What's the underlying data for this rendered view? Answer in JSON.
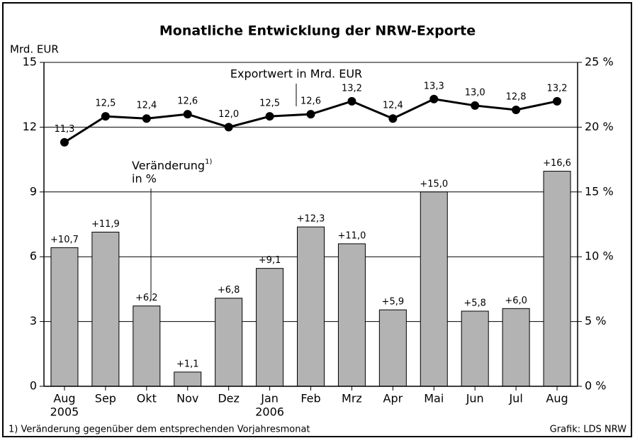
{
  "chart_data": {
    "type": "bar_line",
    "title": "Monatliche Entwicklung der NRW-Exporte",
    "y_axis_label": "Mrd. EUR",
    "categories": [
      "Aug",
      "Sep",
      "Okt",
      "Nov",
      "Dez",
      "Jan",
      "Feb",
      "Mrz",
      "Apr",
      "Mai",
      "Jun",
      "Jul",
      "Aug"
    ],
    "year_labels": [
      "2005",
      null,
      null,
      null,
      null,
      "2006",
      null,
      null,
      null,
      null,
      null,
      null,
      null
    ],
    "series": [
      {
        "name": "Exportwert in Mrd. EUR",
        "type": "line",
        "color": "#000000",
        "values": [
          11.3,
          12.5,
          12.4,
          12.6,
          12.0,
          12.5,
          12.6,
          13.2,
          12.4,
          13.3,
          13.0,
          12.8,
          13.2
        ],
        "value_labels": [
          "11,3",
          "12,5",
          "12,4",
          "12,6",
          "12,0",
          "12,5",
          "12,6",
          "13,2",
          "12,4",
          "13,3",
          "13,0",
          "12,8",
          "13,2"
        ]
      },
      {
        "name": "Veränderung",
        "name_superscript": "1)",
        "name_line2": "in %",
        "type": "bar",
        "axis": "y2",
        "color": "#b3b3b3",
        "values": [
          10.7,
          11.9,
          6.2,
          1.1,
          6.8,
          9.1,
          12.3,
          11.0,
          5.9,
          15.0,
          5.8,
          6.0,
          16.6
        ],
        "value_labels": [
          "+10,7",
          "+11,9",
          "+6,2",
          "+1,1",
          "+6,8",
          "+9,1",
          "+12,3",
          "+11,0",
          "+5,9",
          "+15,0",
          "+5,8",
          "+6,0",
          "+16,6"
        ]
      }
    ],
    "ylim": [
      0,
      15
    ],
    "yticks": [
      0,
      3,
      6,
      9,
      12,
      15
    ],
    "y2lim": [
      0,
      25
    ],
    "y2ticks": [
      {
        "value": 0,
        "label": "0 %"
      },
      {
        "value": 5,
        "label": "5 %"
      },
      {
        "value": 10,
        "label": "10 %"
      },
      {
        "value": 15,
        "label": "15 %"
      },
      {
        "value": 20,
        "label": "20 %"
      },
      {
        "value": 25,
        "label": "25 %"
      }
    ],
    "grid": true,
    "footnote": "1) Veränderung gegenüber dem entsprechenden Vorjahresmonat",
    "source": "Grafik: LDS NRW"
  }
}
